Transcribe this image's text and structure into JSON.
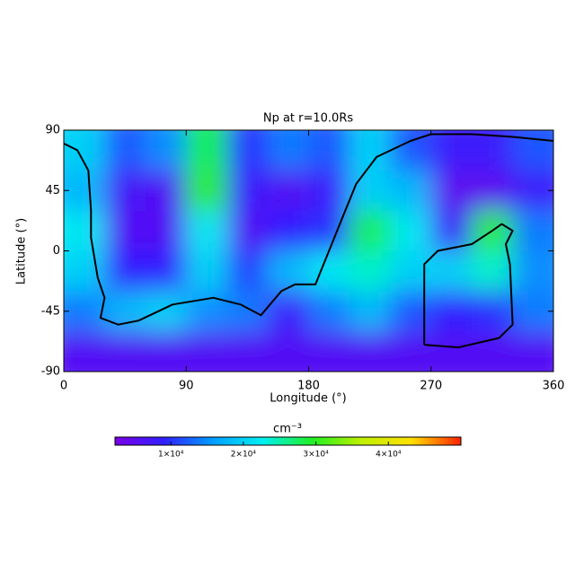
{
  "chart_data": {
    "type": "heatmap",
    "title": "Np at r=10.0Rs",
    "x_label": "Longitude (°)",
    "y_label": "Latitude (°)",
    "xlim": [
      0,
      360
    ],
    "ylim": [
      -90,
      90
    ],
    "xticks": [
      0,
      90,
      180,
      270,
      360
    ],
    "yticks": [
      90,
      45,
      0,
      -45,
      -90
    ],
    "values": [
      [
        20000,
        12000,
        15000,
        28000,
        10000,
        14000,
        12000,
        20000,
        12000,
        8000,
        8000,
        12000
      ],
      [
        18000,
        7000,
        6000,
        30000,
        8000,
        6000,
        8000,
        20000,
        18000,
        5000,
        5000,
        8000
      ],
      [
        22000,
        6000,
        6000,
        22000,
        6000,
        9000,
        10000,
        28000,
        22000,
        8000,
        30000,
        14000
      ],
      [
        20000,
        9000,
        9000,
        20000,
        11000,
        18000,
        22000,
        24000,
        20000,
        20000,
        24000,
        15000
      ],
      [
        14000,
        18000,
        20000,
        15000,
        14000,
        8000,
        14000,
        18000,
        12000,
        9000,
        10000,
        14000
      ],
      [
        6000,
        6000,
        6000,
        6000,
        6000,
        6000,
        6000,
        6000,
        6000,
        6000,
        6000,
        6000
      ]
    ],
    "colormap": [
      "#7a00e6",
      "#3020ff",
      "#00a0ff",
      "#00f0f0",
      "#20f020",
      "#c0f000",
      "#ffe000",
      "#ff2000"
    ],
    "colorbar_label": "cm⁻³",
    "clim": [
      2300,
      50000
    ],
    "cticks": [
      {
        "value": 10000,
        "label": "1×10⁴"
      },
      {
        "value": 20000,
        "label": "2×10⁴"
      },
      {
        "value": 30000,
        "label": "3×10⁴"
      },
      {
        "value": 40000,
        "label": "4×10⁴"
      }
    ],
    "contour_color": "#000000",
    "contours": [
      {
        "lon": [
          0,
          10,
          18,
          20,
          20,
          25,
          30,
          27,
          40,
          55,
          80,
          110,
          130,
          145,
          160,
          170,
          185,
          195,
          205,
          215,
          230,
          255,
          270,
          300,
          330,
          360
        ],
        "lat": [
          80,
          75,
          60,
          30,
          10,
          -20,
          -35,
          -50,
          -55,
          -52,
          -40,
          -35,
          -40,
          -48,
          -30,
          -25,
          -25,
          0,
          25,
          50,
          70,
          82,
          87,
          87,
          85,
          82
        ]
      },
      {
        "lon": [
          265,
          265,
          275,
          300,
          315,
          322,
          330,
          325,
          328,
          330,
          320,
          290,
          265
        ],
        "lat": [
          -70,
          -10,
          0,
          5,
          15,
          20,
          15,
          5,
          -10,
          -55,
          -65,
          -72,
          -70
        ]
      }
    ]
  }
}
